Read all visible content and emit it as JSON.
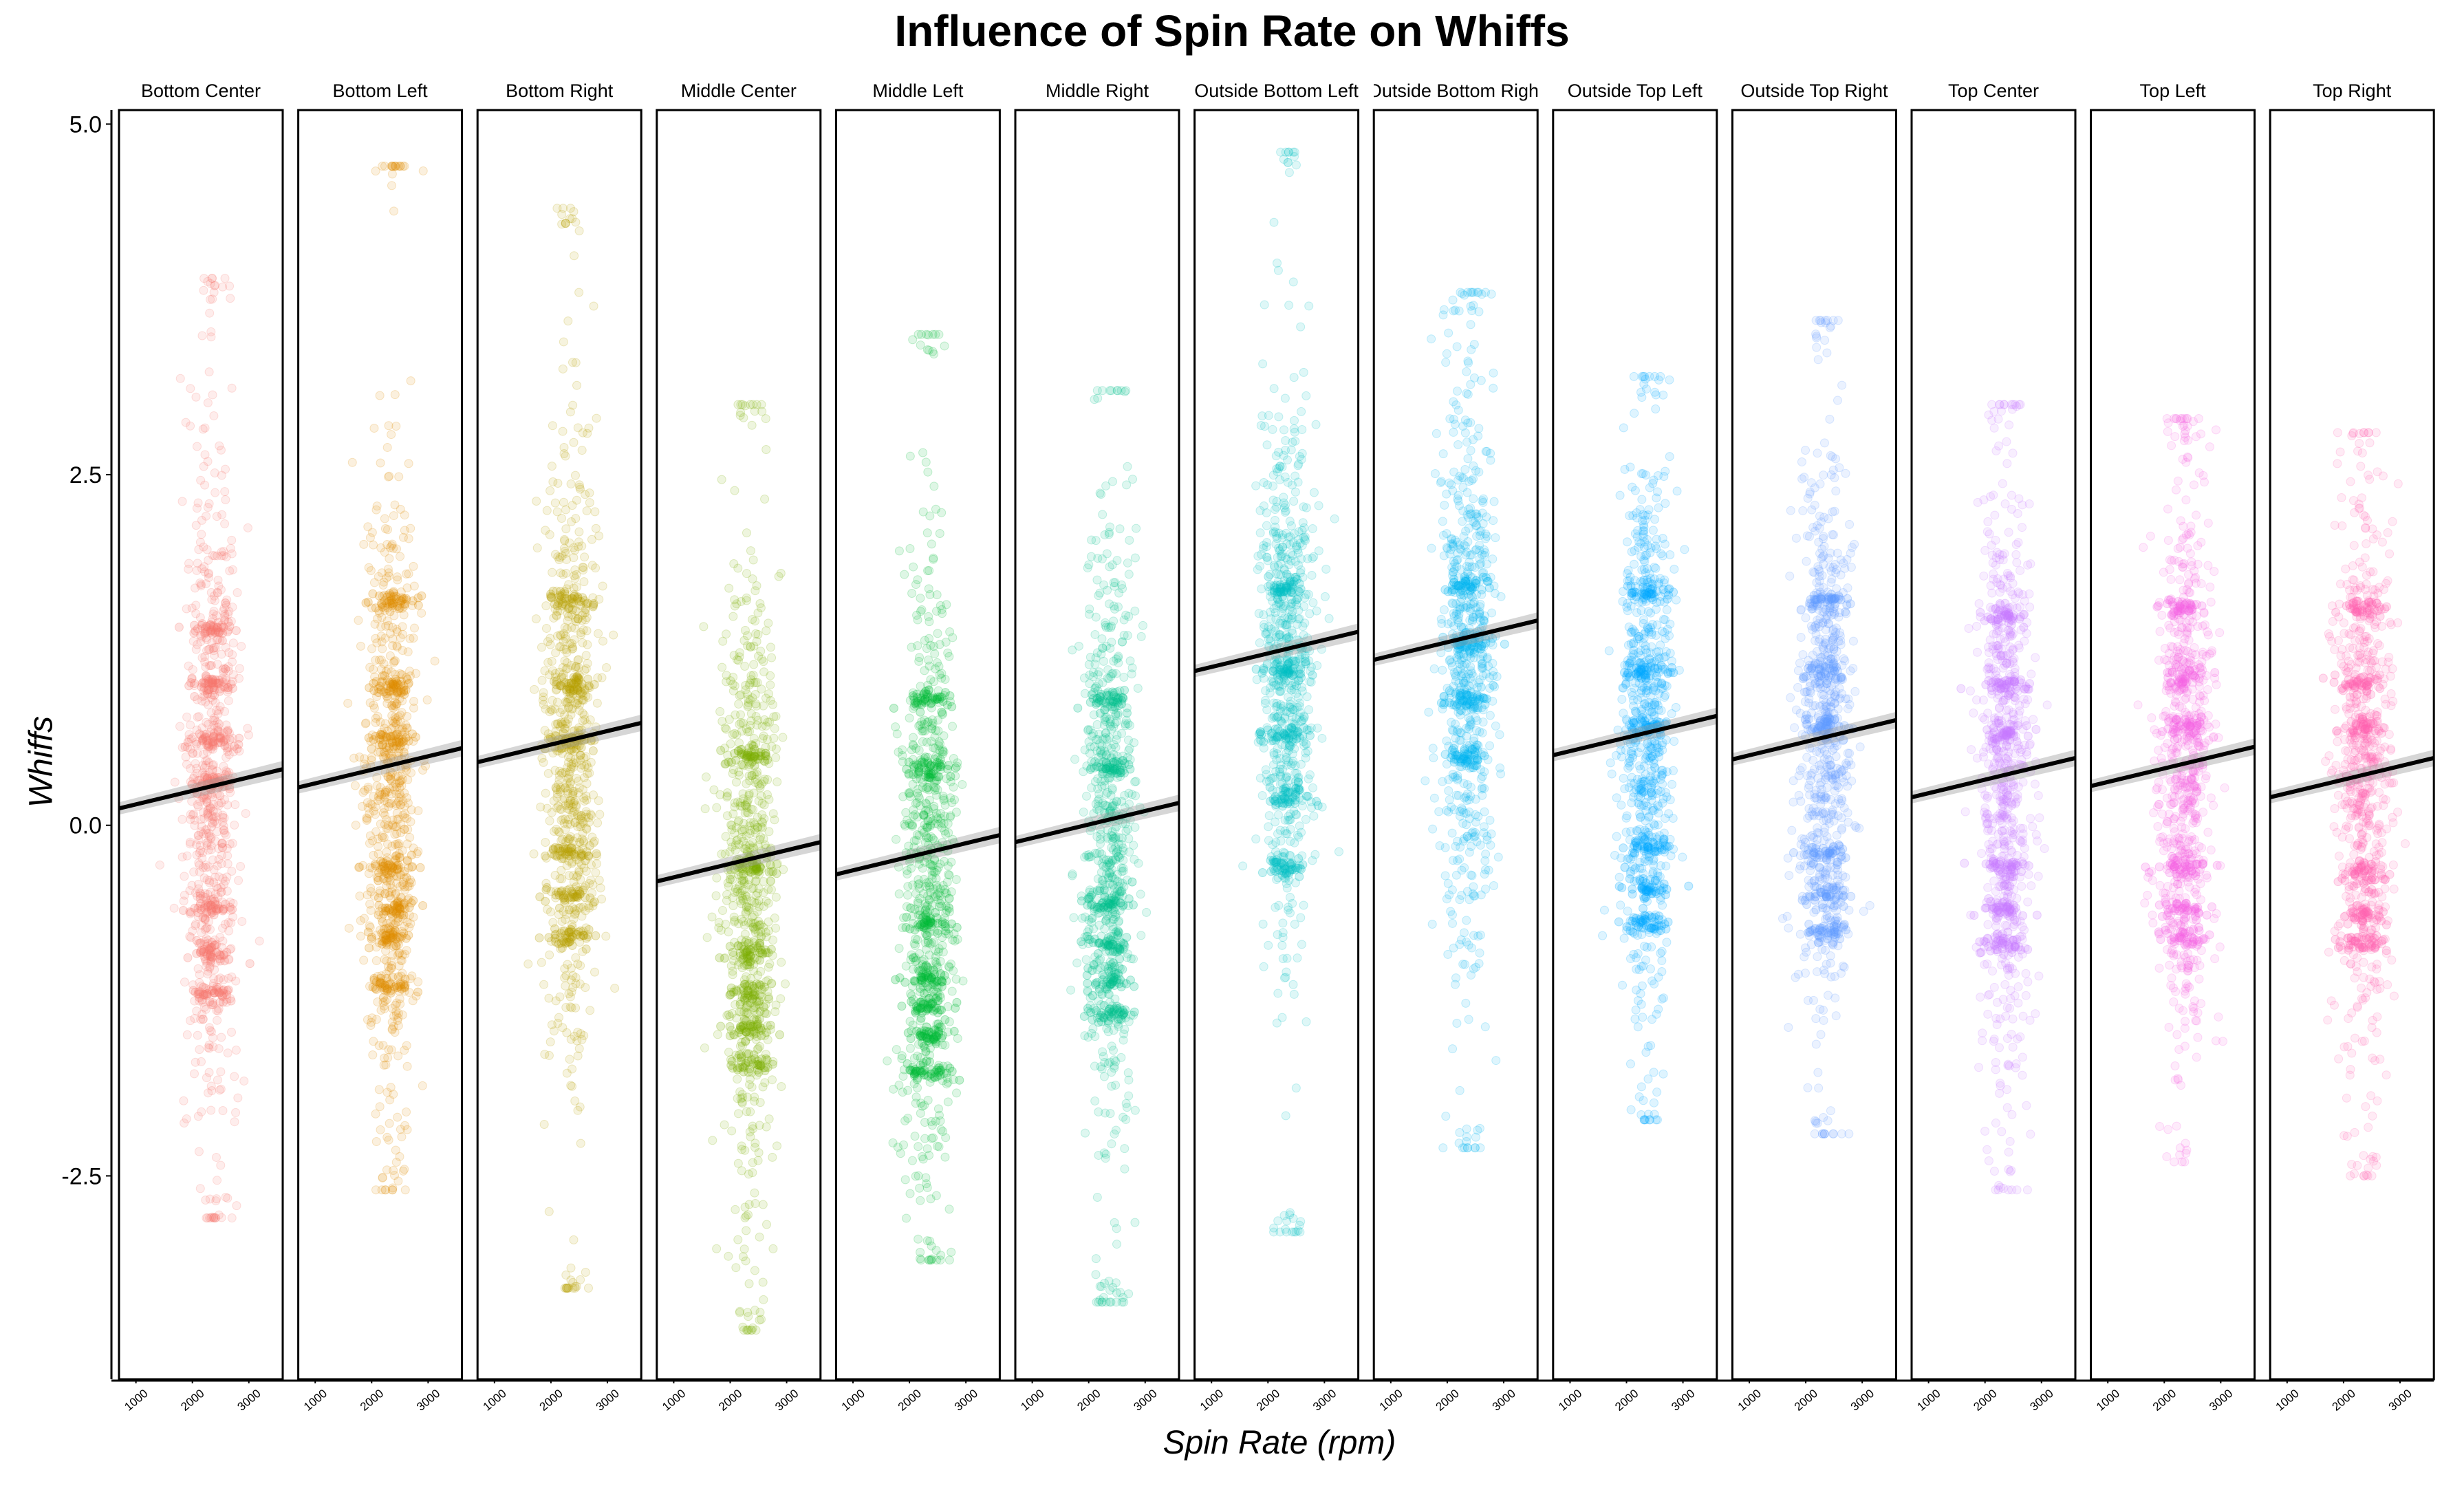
{
  "chart_data": {
    "type": "scatter",
    "title": "Influence of Spin Rate on Whiffs",
    "xlabel": "Spin Rate (rpm)",
    "ylabel": "Whiffs",
    "xlim": [
      700,
      3600
    ],
    "ylim": [
      -3.95,
      5.1
    ],
    "y_ticks": [
      5.0,
      2.5,
      0.0,
      -2.5
    ],
    "y_tick_labels": [
      "5.0",
      "2.5",
      "0.0",
      "-2.5"
    ],
    "x_ticks": [
      1000,
      2000,
      3000
    ],
    "x_tick_labels": [
      "1000",
      "2000",
      "3000"
    ],
    "grid": false,
    "legend": "none",
    "panels": [
      {
        "name": "Bottom Center",
        "color": "#F8766D",
        "trend": {
          "x": [
            700,
            3600
          ],
          "y": [
            0.12,
            0.4
          ]
        },
        "cloud": {
          "x_center": 2350,
          "x_spread": 300,
          "y_min": -2.8,
          "y_max": 3.9,
          "y_center": 0.3,
          "y_sd": 1.15
        },
        "bands": [
          1.4,
          1.0,
          0.6,
          0.3,
          -0.6,
          -0.9,
          -1.2
        ]
      },
      {
        "name": "Bottom Left",
        "color": "#DE8C00",
        "trend": {
          "x": [
            700,
            3600
          ],
          "y": [
            0.27,
            0.55
          ]
        },
        "cloud": {
          "x_center": 2350,
          "x_spread": 300,
          "y_min": -2.6,
          "y_max": 4.7,
          "y_center": 0.2,
          "y_sd": 1.15
        },
        "bands": [
          1.6,
          1.0,
          0.6,
          -0.3,
          -0.6,
          -0.8,
          -1.15
        ]
      },
      {
        "name": "Bottom Right",
        "color": "#B79F00",
        "trend": {
          "x": [
            700,
            3600
          ],
          "y": [
            0.45,
            0.73
          ]
        },
        "cloud": {
          "x_center": 2350,
          "x_spread": 300,
          "y_min": -3.3,
          "y_max": 4.4,
          "y_center": 0.5,
          "y_sd": 1.15
        },
        "bands": [
          1.6,
          1.0,
          0.6,
          -0.2,
          -0.5,
          -0.8
        ]
      },
      {
        "name": "Middle Center",
        "color": "#7CAE00",
        "trend": {
          "x": [
            700,
            3600
          ],
          "y": [
            -0.4,
            -0.12
          ]
        },
        "cloud": {
          "x_center": 2350,
          "x_spread": 300,
          "y_min": -3.6,
          "y_max": 3.0,
          "y_center": -0.4,
          "y_sd": 1.1
        },
        "bands": [
          0.5,
          -0.3,
          -0.9,
          -1.2,
          -1.45,
          -1.7
        ]
      },
      {
        "name": "Middle Left",
        "color": "#00BA38",
        "trend": {
          "x": [
            700,
            3600
          ],
          "y": [
            -0.35,
            -0.07
          ]
        },
        "cloud": {
          "x_center": 2350,
          "x_spread": 300,
          "y_min": -3.1,
          "y_max": 3.5,
          "y_center": -0.4,
          "y_sd": 1.1
        },
        "bands": [
          0.9,
          0.4,
          -0.7,
          -1.1,
          -1.3,
          -1.5,
          -1.75
        ]
      },
      {
        "name": "Middle Right",
        "color": "#00C08B",
        "trend": {
          "x": [
            700,
            3600
          ],
          "y": [
            -0.12,
            0.16
          ]
        },
        "cloud": {
          "x_center": 2350,
          "x_spread": 300,
          "y_min": -3.4,
          "y_max": 3.1,
          "y_center": 0.0,
          "y_sd": 1.1
        },
        "bands": [
          0.9,
          0.4,
          -0.55,
          -0.85,
          -1.1,
          -1.35
        ]
      },
      {
        "name": "Outside Bottom Left",
        "color": "#00BFC4",
        "trend": {
          "x": [
            700,
            3600
          ],
          "y": [
            1.1,
            1.38
          ]
        },
        "cloud": {
          "x_center": 2350,
          "x_spread": 300,
          "y_min": -2.9,
          "y_max": 4.8,
          "y_center": 1.2,
          "y_sd": 1.0
        },
        "bands": [
          1.7,
          1.1,
          0.65,
          0.2,
          -0.3
        ]
      },
      {
        "name": "Outside Bottom Right",
        "color": "#00B4F0",
        "trend": {
          "x": [
            700,
            3600
          ],
          "y": [
            1.18,
            1.46
          ]
        },
        "cloud": {
          "x_center": 2350,
          "x_spread": 300,
          "y_min": -2.3,
          "y_max": 3.8,
          "y_center": 1.2,
          "y_sd": 1.0
        },
        "bands": [
          1.7,
          1.3,
          0.9,
          0.5
        ]
      },
      {
        "name": "Outside Top Left",
        "color": "#00A9FF",
        "trend": {
          "x": [
            700,
            3600
          ],
          "y": [
            0.5,
            0.78
          ]
        },
        "cloud": {
          "x_center": 2350,
          "x_spread": 300,
          "y_min": -2.1,
          "y_max": 3.2,
          "y_center": 0.6,
          "y_sd": 1.0
        },
        "bands": [
          1.65,
          1.1,
          0.7,
          -0.15,
          -0.45,
          -0.7
        ]
      },
      {
        "name": "Outside Top Right",
        "color": "#619CFF",
        "trend": {
          "x": [
            700,
            3600
          ],
          "y": [
            0.47,
            0.75
          ]
        },
        "cloud": {
          "x_center": 2350,
          "x_spread": 300,
          "y_min": -2.2,
          "y_max": 3.6,
          "y_center": 0.6,
          "y_sd": 1.0
        },
        "bands": [
          1.6,
          1.1,
          0.7,
          -0.2,
          -0.5,
          -0.75
        ]
      },
      {
        "name": "Top Center",
        "color": "#C77CFF",
        "trend": {
          "x": [
            700,
            3600
          ],
          "y": [
            0.2,
            0.48
          ]
        },
        "cloud": {
          "x_center": 2350,
          "x_spread": 300,
          "y_min": -2.6,
          "y_max": 3.0,
          "y_center": 0.3,
          "y_sd": 1.05
        },
        "bands": [
          1.5,
          1.0,
          0.65,
          -0.3,
          -0.6,
          -0.85
        ]
      },
      {
        "name": "Top Left",
        "color": "#F564E3",
        "trend": {
          "x": [
            700,
            3600
          ],
          "y": [
            0.28,
            0.56
          ]
        },
        "cloud": {
          "x_center": 2350,
          "x_spread": 300,
          "y_min": -2.4,
          "y_max": 2.9,
          "y_center": 0.4,
          "y_sd": 1.0
        },
        "bands": [
          1.55,
          1.05,
          0.7,
          -0.3,
          -0.6,
          -0.8
        ]
      },
      {
        "name": "Top Right",
        "color": "#FF64B0",
        "trend": {
          "x": [
            700,
            3600
          ],
          "y": [
            0.2,
            0.48
          ]
        },
        "cloud": {
          "x_center": 2350,
          "x_spread": 300,
          "y_min": -2.5,
          "y_max": 2.8,
          "y_center": 0.4,
          "y_sd": 1.0
        },
        "bands": [
          1.55,
          1.0,
          0.7,
          -0.35,
          -0.65,
          -0.85
        ]
      }
    ]
  }
}
